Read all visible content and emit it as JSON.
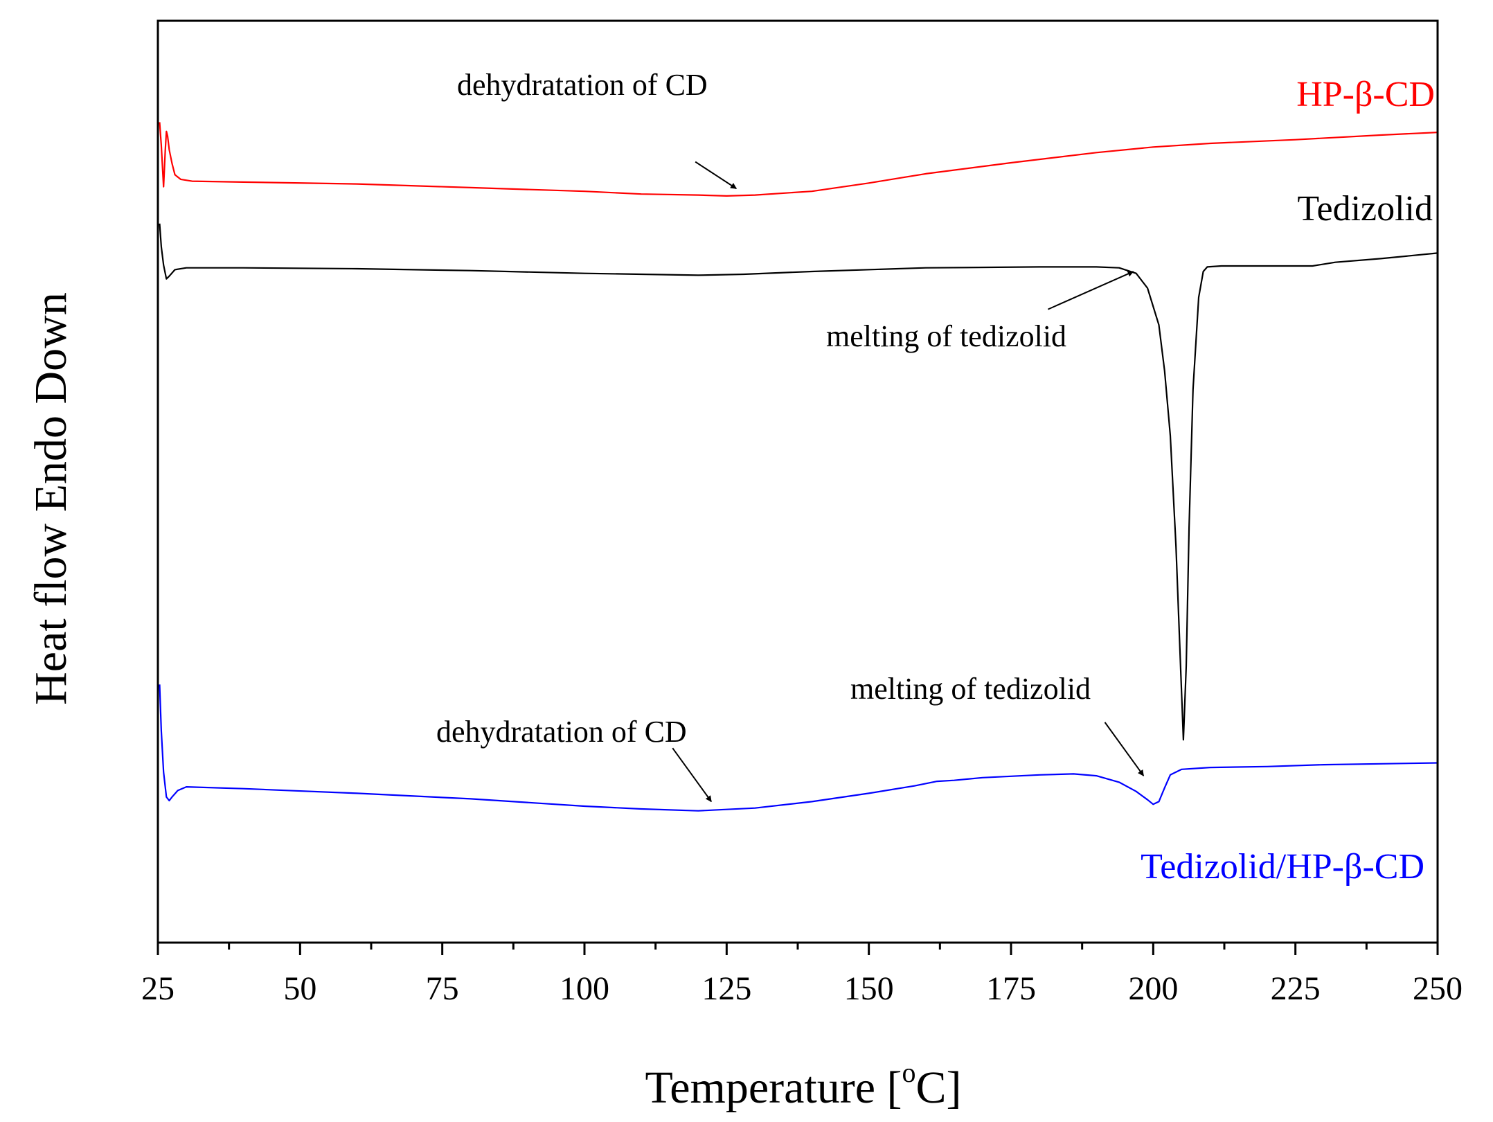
{
  "chart_data": {
    "type": "line",
    "title": "",
    "xlabel_main": "Temperature [",
    "xlabel_sup": "o",
    "xlabel_end": "C]",
    "ylabel": "Heat flow Endo Down",
    "xlim": [
      25,
      250
    ],
    "ylim": [
      0,
      100
    ],
    "grid": false,
    "legend": "none",
    "x_ticks": [
      25,
      50,
      75,
      100,
      125,
      150,
      175,
      200,
      225,
      250
    ],
    "x_tick_labels": [
      "25",
      "50",
      "75",
      "100",
      "125",
      "150",
      "175",
      "200",
      "225",
      "250"
    ],
    "series": [
      {
        "name": "HP-β-CD",
        "color": "#ff0000",
        "x": [
          25.3,
          25.6,
          26.0,
          26.3,
          26.5,
          26.7,
          27.0,
          27.5,
          28.0,
          29.0,
          31.0,
          40,
          60,
          80,
          100,
          110,
          120,
          125,
          130,
          140,
          150,
          160,
          175,
          190,
          200,
          210,
          225,
          240,
          250
        ],
        "y": [
          89.0,
          86.5,
          82.0,
          86.0,
          88.0,
          87.5,
          86.0,
          84.5,
          83.3,
          82.8,
          82.6,
          82.5,
          82.3,
          81.9,
          81.5,
          81.2,
          81.1,
          81.0,
          81.1,
          81.5,
          82.4,
          83.4,
          84.6,
          85.7,
          86.3,
          86.7,
          87.1,
          87.6,
          87.9
        ]
      },
      {
        "name": "Tedizolid",
        "color": "#000000",
        "x": [
          25.3,
          25.6,
          26.0,
          26.5,
          27.0,
          28.0,
          30.0,
          40,
          60,
          80,
          100,
          110,
          120,
          128,
          140,
          160,
          180,
          190,
          194,
          197,
          199,
          201,
          202,
          203,
          204,
          204.8,
          205.3,
          205.8,
          206.3,
          207,
          208,
          208.8,
          209.5,
          212,
          220,
          228,
          232,
          240,
          250
        ],
        "y": [
          78.0,
          75.5,
          73.5,
          72.0,
          72.3,
          73.0,
          73.2,
          73.2,
          73.1,
          72.9,
          72.6,
          72.5,
          72.4,
          72.5,
          72.8,
          73.2,
          73.3,
          73.3,
          73.2,
          72.6,
          71.0,
          67.0,
          62.0,
          55.0,
          43.0,
          30.0,
          22.0,
          30.0,
          45.0,
          60.0,
          70.0,
          72.8,
          73.3,
          73.4,
          73.4,
          73.4,
          73.8,
          74.2,
          74.8
        ]
      },
      {
        "name": "Tedizolid/HP-β-CD",
        "color": "#0000ff",
        "x": [
          25.3,
          25.6,
          26.0,
          26.5,
          27.0,
          27.5,
          28.5,
          30,
          40,
          60,
          80,
          100,
          110,
          120,
          130,
          140,
          150,
          158,
          162,
          165,
          170,
          180,
          186,
          190,
          194,
          197,
          199,
          200,
          201,
          202,
          203,
          205,
          210,
          220,
          230,
          240,
          250
        ],
        "y": [
          28.0,
          23.0,
          18.5,
          15.8,
          15.4,
          15.8,
          16.5,
          16.9,
          16.7,
          16.2,
          15.6,
          14.8,
          14.5,
          14.3,
          14.6,
          15.3,
          16.2,
          17.0,
          17.5,
          17.6,
          17.9,
          18.2,
          18.3,
          18.1,
          17.4,
          16.4,
          15.5,
          15.0,
          15.3,
          16.8,
          18.2,
          18.8,
          19.0,
          19.1,
          19.3,
          19.4,
          19.5
        ]
      }
    ],
    "series_labels": [
      {
        "text": "HP-β-CD",
        "color": "#ff0000"
      },
      {
        "text": "Tedizolid",
        "color": "#000000"
      },
      {
        "text": "Tedizolid/HP-β-CD",
        "color": "#0000ff"
      }
    ],
    "annotations": [
      {
        "text": "dehydratation of CD",
        "arrow_from": [
          119.5,
          84.7
        ],
        "arrow_to": [
          126.7,
          81.8
        ]
      },
      {
        "text": "melting of tedizolid",
        "arrow_from": [
          181.5,
          68.7
        ],
        "arrow_to": [
          196.5,
          72.8
        ]
      },
      {
        "text": "dehydratation of CD",
        "arrow_from": [
          115.5,
          21.1
        ],
        "arrow_to": [
          122.3,
          15.3
        ]
      },
      {
        "text": "melting of tedizolid",
        "arrow_from": [
          191.5,
          23.9
        ],
        "arrow_to": [
          198.3,
          18.1
        ]
      }
    ]
  }
}
